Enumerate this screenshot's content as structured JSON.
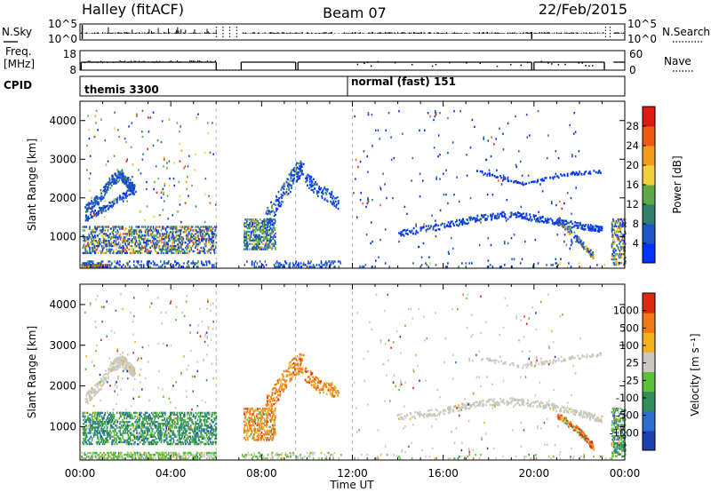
{
  "header": {
    "station": "Halley (fitACF)",
    "beam": "Beam 07",
    "date": "22/Feb/2015"
  },
  "noise_panel": {
    "left_label": "N.Sky",
    "right_label": "N.Search",
    "ticks": [
      "10^5",
      "10^0"
    ]
  },
  "freq_panel": {
    "left_label_line1": "Freq.",
    "left_label_line2": "[MHz]",
    "left_ticks": [
      "18",
      "8"
    ],
    "right_label": "Nave",
    "right_ticks": [
      "60",
      "0"
    ]
  },
  "cpid_panel": {
    "label": "CPID",
    "segments": [
      {
        "text": "themis 3300",
        "start_hour": 0
      },
      {
        "text": "normal (fast) 151",
        "start_hour": 12
      }
    ]
  },
  "time_axis": {
    "title": "Time UT",
    "ticks": [
      "00:00",
      "04:00",
      "08:00",
      "12:00",
      "16:00",
      "20:00",
      "00:00"
    ]
  },
  "chart_data": [
    {
      "type": "heatmap",
      "name": "power",
      "ylabel": "Slant Range [km]",
      "x_range_hours": [
        0,
        24
      ],
      "ylim": [
        180,
        4500
      ],
      "yticks": [
        "4000",
        "3000",
        "2000",
        "1000"
      ],
      "colorbar_label": "Power [dB]",
      "colorbar_ticks": [
        "28",
        "24",
        "20",
        "16",
        "12",
        "8",
        "4"
      ],
      "colors": [
        "#0033ff",
        "#1f55c8",
        "#2f7f6a",
        "#5ca845",
        "#f2d13a",
        "#f39b1c",
        "#f05a14",
        "#e01a10"
      ]
    },
    {
      "type": "heatmap",
      "name": "velocity",
      "ylabel": "Slant Range [km]",
      "x_range_hours": [
        0,
        24
      ],
      "ylim": [
        180,
        4500
      ],
      "yticks": [
        "4000",
        "3000",
        "2000",
        "1000"
      ],
      "colorbar_label": "Velocity [m s⁻¹]",
      "colorbar_ticks": [
        "1000",
        "500",
        "100",
        "25",
        "-25",
        "-100",
        "-500",
        "-1000"
      ],
      "colors": [
        "#1e3fb0",
        "#2a6fd0",
        "#2f8f5a",
        "#5cc23a",
        "#c8c8c0",
        "#f2b21c",
        "#f07a14",
        "#e02a10"
      ]
    }
  ]
}
